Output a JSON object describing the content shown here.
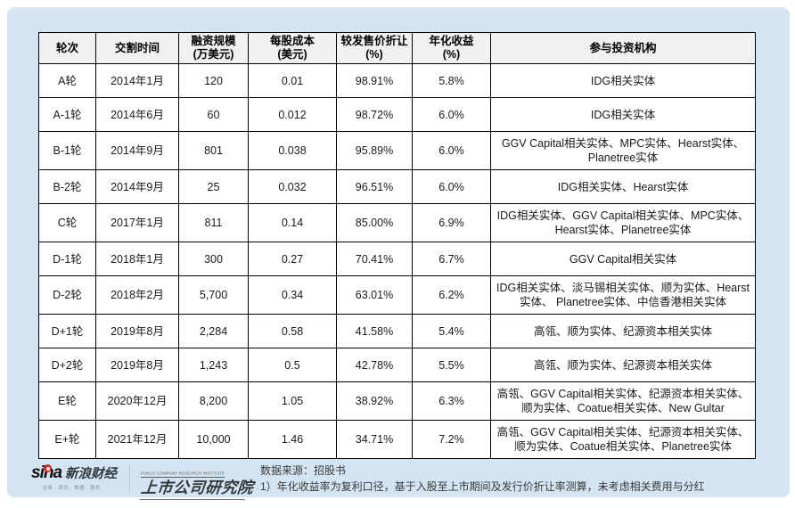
{
  "colors": {
    "panel_background": "#d3e5f2",
    "table_border": "#000000",
    "header_fill": "#f0f0f0",
    "body_fill": "#ffffff",
    "sina_red": "#e02222"
  },
  "table": {
    "headers": [
      {
        "line1": "轮次",
        "line2": ""
      },
      {
        "line1": "交割时间",
        "line2": ""
      },
      {
        "line1": "融资规模",
        "line2": "(万美元)"
      },
      {
        "line1": "每股成本",
        "line2": "(美元)"
      },
      {
        "line1": "较发售价折让",
        "line2": "(%)"
      },
      {
        "line1": "年化收益",
        "line2": "(%)"
      },
      {
        "line1": "参与投资机构",
        "line2": ""
      }
    ],
    "rows": [
      [
        "A轮",
        "2014年1月",
        "120",
        "0.01",
        "98.91%",
        "5.8%",
        "IDG相关实体"
      ],
      [
        "A-1轮",
        "2014年6月",
        "60",
        "0.012",
        "98.72%",
        "6.0%",
        "IDG相关实体"
      ],
      [
        "B-1轮",
        "2014年9月",
        "801",
        "0.038",
        "95.89%",
        "6.0%",
        "GGV Capital相关实体、MPC实体、Hearst实体、Planetree实体"
      ],
      [
        "B-2轮",
        "2014年9月",
        "25",
        "0.032",
        "96.51%",
        "6.0%",
        "IDG相关实体、Hearst实体"
      ],
      [
        "C轮",
        "2017年1月",
        "811",
        "0.14",
        "85.00%",
        "6.9%",
        "IDG相关实体、GGV Capital相关实体、MPC实体、Hearst实体、Planetree实体"
      ],
      [
        "D-1轮",
        "2018年1月",
        "300",
        "0.27",
        "70.41%",
        "6.7%",
        "GGV Capital相关实体"
      ],
      [
        "D-2轮",
        "2018年2月",
        "5,700",
        "0.34",
        "63.01%",
        "6.2%",
        "IDG相关实体、淡马锡相关实体、顺为实体、Hearst实体、 Planetree实体、中信香港相关实体"
      ],
      [
        "D+1轮",
        "2019年8月",
        "2,284",
        "0.58",
        "41.58%",
        "5.4%",
        "高瓴、顺为实体、纪源资本相关实体"
      ],
      [
        "D+2轮",
        "2019年8月",
        "1,243",
        "0.5",
        "42.78%",
        "5.5%",
        "高瓴、顺为实体、纪源资本相关实体"
      ],
      [
        "E轮",
        "2020年12月",
        "8,200",
        "1.05",
        "38.92%",
        "6.3%",
        "高瓴、GGV Capital相关实体、纪源资本相关实体、顺为实体、Coatue相关实体、New Gultar"
      ],
      [
        "E+轮",
        "2021年12月",
        "10,000",
        "1.46",
        "34.71%",
        "7.2%",
        "高瓴、GGV Capital相关实体、纪源资本相关实体、顺为实体、Coatue相关实体、Planetree实体"
      ]
    ]
  },
  "footer": {
    "sina_logo": {
      "word": "sina",
      "brand": "新浪财经",
      "tagline": "交易 · 资讯 · 数据 · 服务"
    },
    "institute_logo": {
      "en": "PUBLIC COMPANY RESEARCH INSTITUTE",
      "zh": "上市公司研究院"
    },
    "source": "数据来源：招股书",
    "note": "1）年化收益率为复利口径，基于入股至上市期间及发行价折让率测算，未考虑相关费用与分红"
  }
}
